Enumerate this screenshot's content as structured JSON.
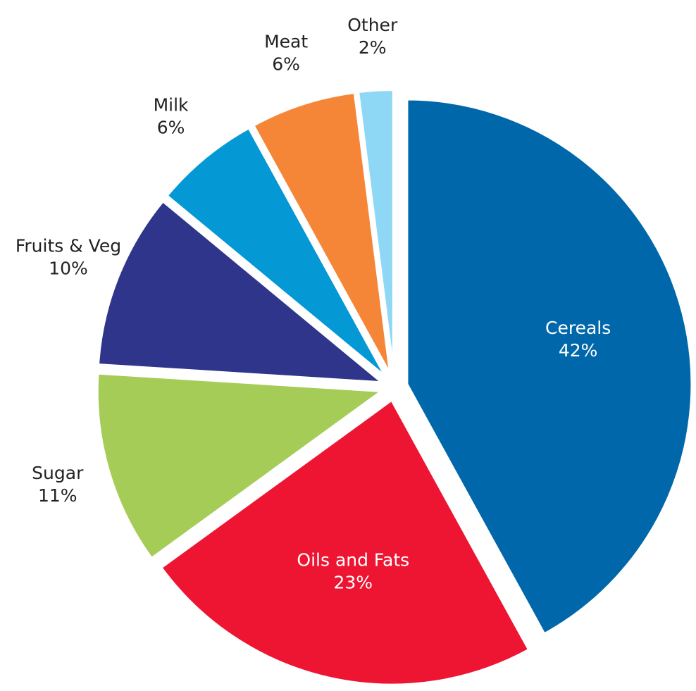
{
  "chart_data": {
    "type": "pie",
    "categories": [
      "Cereals",
      "Oils and Fats",
      "Sugar",
      "Fruits & Veg",
      "Milk",
      "Meat",
      "Other"
    ],
    "values": [
      42,
      23,
      11,
      10,
      6,
      6,
      2
    ],
    "value_labels": [
      "42%",
      "23%",
      "11%",
      "10%",
      "6%",
      "6%",
      "2%"
    ],
    "colors": [
      "#0068aa",
      "#ee1532",
      "#a6cc58",
      "#2e358a",
      "#0498d5",
      "#f58637",
      "#8fd8f5"
    ]
  }
}
